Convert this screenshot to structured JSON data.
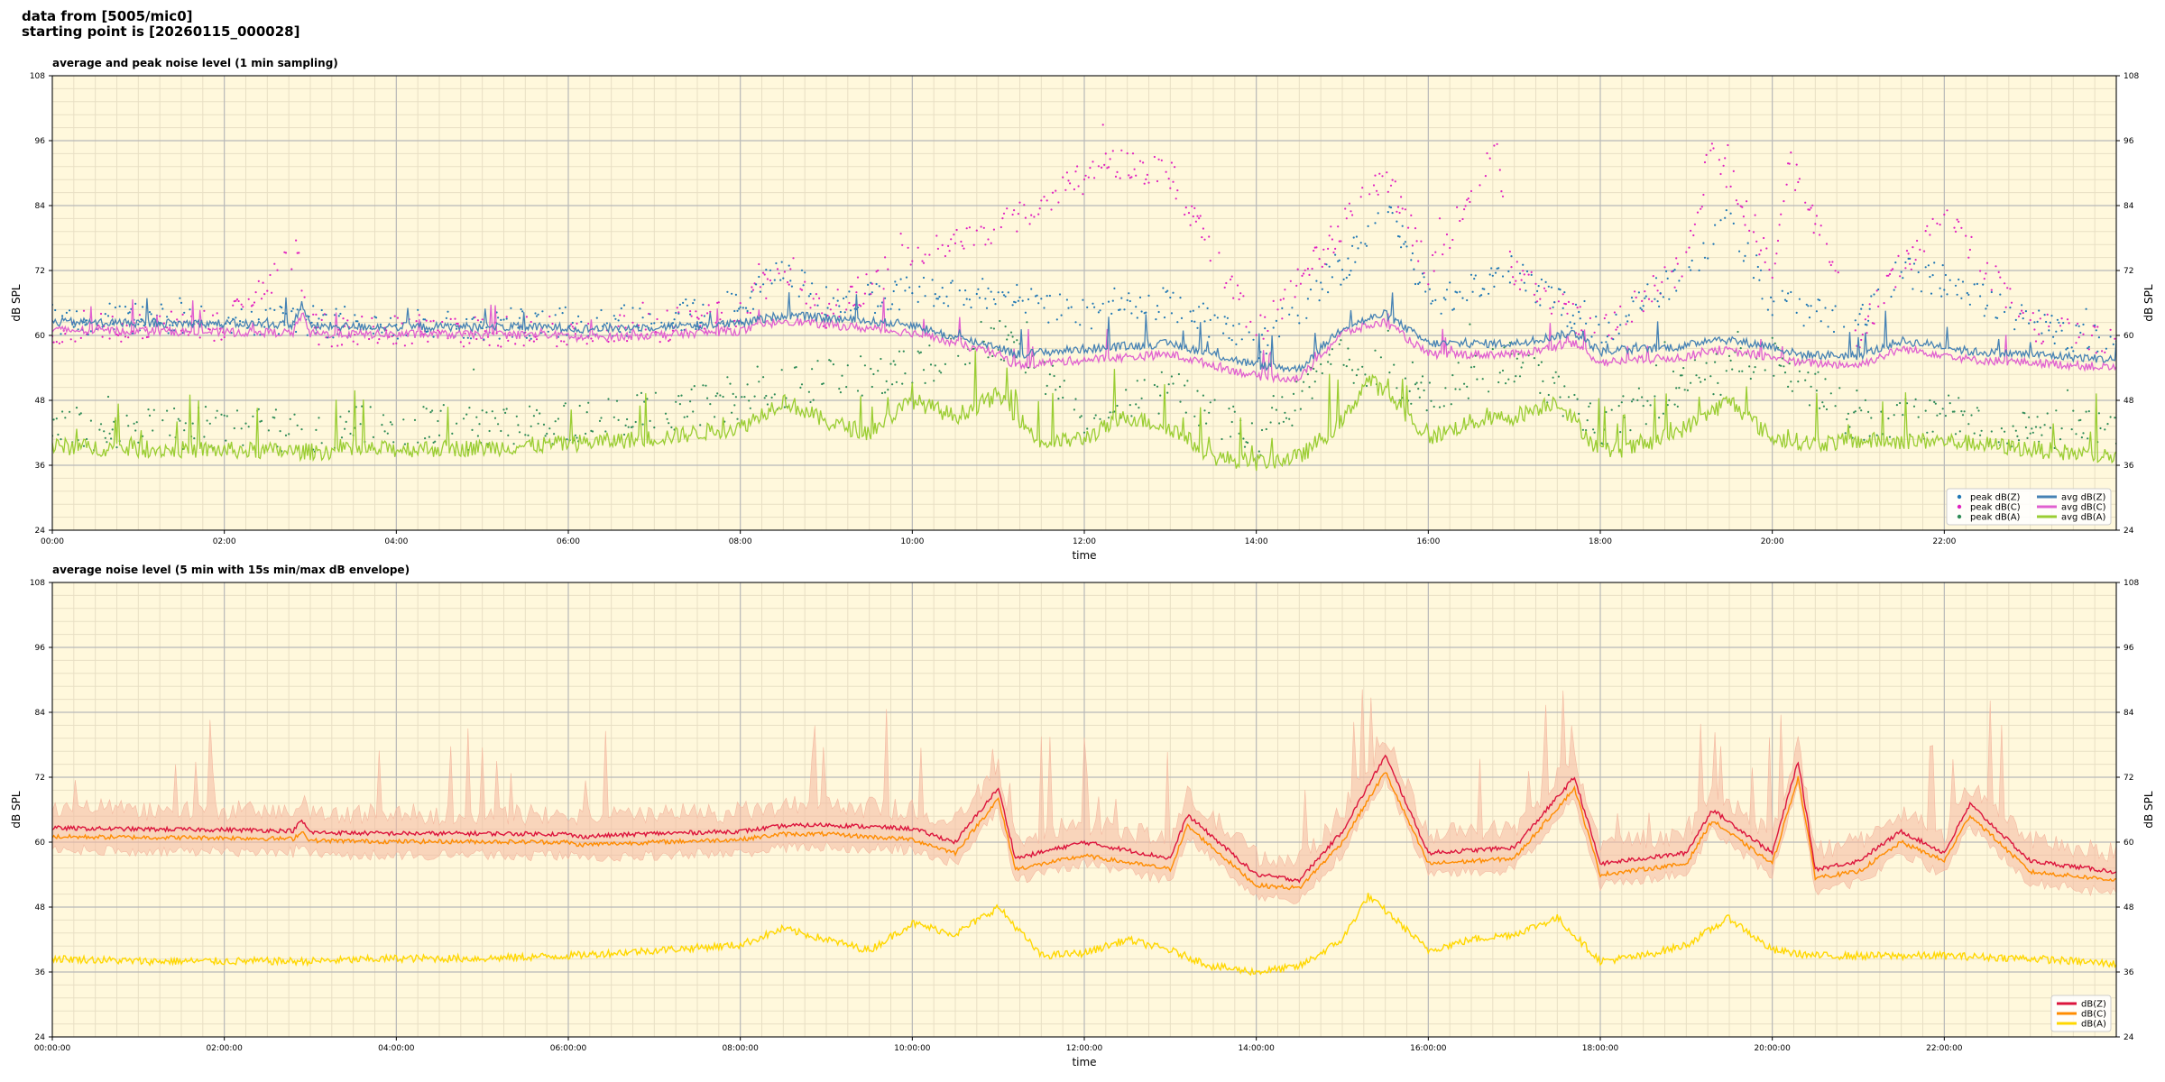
{
  "header": {
    "line1": "data from [5005/mic0]",
    "line2": "starting point is [20260115_000028]"
  },
  "colors": {
    "plot_bg": "#fff8dc",
    "grid_major": "#b8b8b8",
    "grid_minor": "#e8dfc4",
    "zpeak": "#1f77b4",
    "zavg": "#4682b4",
    "cpeak": "#e020c0",
    "cavg": "#e060d0",
    "apeak": "#2e8b57",
    "aavg": "#9acd32",
    "env_dbz": "#dc143c",
    "env_dbc": "#ff8c00",
    "env_dba": "#ffd700",
    "env_fill": "#f4b8a0"
  },
  "chart_data": [
    {
      "type": "line",
      "title": "average and peak noise level (1 min sampling)",
      "xlabel": "time",
      "ylabel": "dB SPL",
      "ylabel_right": "dB SPL",
      "xlim": [
        0,
        24
      ],
      "ylim": [
        24,
        108
      ],
      "y_ticks": [
        "24",
        "36",
        "48",
        "60",
        "72",
        "84",
        "96",
        "108"
      ],
      "x_ticks": [
        "00:00",
        "02:00",
        "04:00",
        "06:00",
        "08:00",
        "10:00",
        "12:00",
        "14:00",
        "16:00",
        "18:00",
        "20:00",
        "22:00"
      ],
      "grid": true,
      "legend_position": "bottom-right",
      "legend": [
        {
          "label": "peak dB(Z)",
          "style": "dot",
          "color_key": "zpeak"
        },
        {
          "label": "peak dB(C)",
          "style": "dot",
          "color_key": "cpeak"
        },
        {
          "label": "peak dB(A)",
          "style": "dot",
          "color_key": "apeak"
        },
        {
          "label": "avg dB(Z)",
          "style": "line",
          "color_key": "zavg"
        },
        {
          "label": "avg dB(C)",
          "style": "line",
          "color_key": "cavg"
        },
        {
          "label": "avg dB(A)",
          "style": "line",
          "color_key": "aavg"
        }
      ],
      "series": [
        {
          "name": "avg dB(Z)",
          "color_key": "zavg",
          "x": [
            0,
            1,
            2,
            2.8,
            2.9,
            3,
            4,
            5,
            6,
            6.1,
            7,
            8,
            8.5,
            9,
            10,
            10.5,
            11,
            11.2,
            12,
            13,
            14,
            14.5,
            15,
            15.5,
            16,
            17,
            17.7,
            18,
            19,
            19.3,
            20,
            20.3,
            21,
            21.5,
            22,
            22.3,
            23,
            24
          ],
          "y": [
            62.5,
            62.3,
            62.2,
            62.0,
            66.0,
            61.7,
            61.6,
            61.6,
            61.5,
            61.2,
            61.6,
            62.2,
            63.8,
            63.2,
            62.0,
            59.5,
            58.0,
            56.5,
            57.5,
            58.5,
            54.5,
            53.8,
            61.5,
            64.0,
            58.5,
            58.5,
            60.5,
            57.0,
            58.0,
            59.5,
            58.0,
            56.5,
            56.2,
            59.0,
            58.0,
            57.0,
            56.5,
            55.5
          ]
        },
        {
          "name": "avg dB(C)",
          "color_key": "cavg",
          "x": [
            0,
            1,
            2,
            2.8,
            2.9,
            3,
            4,
            5,
            6,
            6.1,
            7,
            8,
            8.5,
            9,
            10,
            10.5,
            11,
            11.2,
            12,
            13,
            14,
            14.5,
            15,
            15.5,
            16,
            17,
            17.7,
            18,
            19,
            19.3,
            20,
            20.3,
            21,
            21.5,
            22,
            22.3,
            23,
            24
          ],
          "y": [
            61.0,
            60.8,
            60.6,
            60.5,
            64.0,
            60.3,
            60.2,
            60.2,
            60.0,
            59.5,
            60.1,
            60.8,
            62.8,
            62.0,
            60.5,
            58.5,
            56.5,
            54.5,
            55.5,
            56.5,
            52.5,
            52.0,
            60.5,
            62.5,
            56.5,
            56.5,
            58.5,
            55.0,
            56.0,
            57.5,
            56.0,
            55.0,
            54.5,
            57.5,
            56.5,
            55.5,
            55.0,
            54.0
          ]
        },
        {
          "name": "avg dB(A)",
          "color_key": "aavg",
          "x": [
            0,
            1,
            2,
            3,
            4,
            5,
            6,
            7,
            8,
            8.5,
            9,
            9.5,
            10,
            10.5,
            11,
            11.5,
            12,
            12.5,
            13,
            13.5,
            14,
            14.5,
            15,
            15.3,
            15.6,
            16,
            16.5,
            17,
            17.5,
            18,
            18.5,
            19,
            19.5,
            20,
            20.5,
            21,
            22,
            23,
            24
          ],
          "y": [
            39.5,
            39.0,
            38.8,
            38.5,
            39.0,
            39.2,
            40.0,
            41.0,
            43.0,
            48.0,
            44.0,
            42.0,
            48.0,
            45.0,
            49.0,
            40.0,
            41.0,
            45.0,
            43.0,
            37.5,
            36.5,
            37.5,
            44.0,
            52.0,
            48.0,
            41.0,
            44.0,
            45.0,
            48.0,
            38.5,
            39.5,
            43.0,
            48.0,
            41.0,
            40.0,
            40.5,
            40.5,
            39.0,
            37.5
          ]
        },
        {
          "name": "peak dB(Z)",
          "color_key": "zpeak",
          "x": [
            0,
            1,
            2,
            3,
            4,
            5,
            6,
            7,
            8,
            8.5,
            9,
            10,
            11,
            12,
            13,
            14,
            15,
            15.5,
            16,
            17,
            18,
            19,
            19.5,
            20,
            21,
            21.5,
            22,
            23,
            24
          ],
          "y": [
            63.0,
            63.2,
            63.0,
            62.5,
            62.3,
            62.2,
            62.5,
            63.0,
            65.0,
            72.0,
            66.0,
            68.0,
            67.0,
            64.0,
            66.0,
            58.0,
            72.0,
            85.0,
            66.0,
            72.0,
            60.0,
            72.0,
            82.0,
            66.0,
            62.0,
            72.0,
            70.0,
            62.0,
            58.0
          ]
        },
        {
          "name": "peak dB(C)",
          "color_key": "cpeak",
          "x": [
            0,
            1,
            2,
            2.85,
            3,
            4,
            5,
            6,
            7,
            8,
            8.5,
            9,
            10,
            11,
            12.3,
            13,
            14,
            15,
            15.5,
            16,
            16.8,
            17,
            18,
            19,
            19.3,
            20,
            20.2,
            21,
            21.5,
            22,
            22.3,
            23,
            24
          ],
          "y": [
            61.5,
            61.7,
            61.5,
            75.0,
            61.0,
            60.8,
            60.8,
            61.0,
            61.5,
            64.0,
            73.5,
            64.0,
            75.0,
            80.0,
            92.0,
            90.0,
            60.0,
            80.0,
            90.0,
            72.0,
            93.0,
            72.0,
            60.0,
            73.0,
            95.5,
            73.0,
            92.0,
            60.0,
            73.0,
            81.0,
            76.0,
            62.0,
            58.0
          ]
        },
        {
          "name": "peak dB(A)",
          "color_key": "apeak",
          "x": [
            0,
            1,
            2,
            3,
            4,
            5,
            6,
            7,
            8,
            9,
            10,
            11,
            12,
            13,
            14,
            15,
            16,
            17,
            18,
            19,
            20,
            21,
            22,
            23,
            24
          ],
          "y": [
            43.0,
            42.5,
            43.0,
            42.0,
            44.0,
            42.5,
            44.0,
            46.0,
            48.0,
            52.0,
            54.0,
            60.0,
            46.0,
            50.0,
            41.0,
            56.0,
            49.0,
            55.0,
            43.0,
            51.0,
            56.0,
            44.0,
            45.0,
            43.0,
            42.0
          ]
        }
      ]
    },
    {
      "type": "line",
      "title": "average noise level (5 min with 15s min/max dB envelope)",
      "xlabel": "time",
      "ylabel": "dB SPL",
      "ylabel_right": "dB SPL",
      "xlim": [
        0,
        24
      ],
      "ylim": [
        24,
        108
      ],
      "y_ticks": [
        "24",
        "36",
        "48",
        "60",
        "72",
        "84",
        "96",
        "108"
      ],
      "x_ticks": [
        "00:00:00",
        "02:00:00",
        "04:00:00",
        "06:00:00",
        "08:00:00",
        "10:00:00",
        "12:00:00",
        "14:00:00",
        "16:00:00",
        "18:00:00",
        "20:00:00",
        "22:00:00"
      ],
      "grid": true,
      "legend_position": "bottom-right",
      "legend": [
        {
          "label": "dB(Z)",
          "style": "line",
          "color_key": "env_dbz"
        },
        {
          "label": "dB(C)",
          "style": "line",
          "color_key": "env_dbc"
        },
        {
          "label": "dB(A)",
          "style": "line",
          "color_key": "env_dba"
        }
      ],
      "series": [
        {
          "name": "dB(Z)",
          "color_key": "env_dbz",
          "x": [
            0,
            1,
            2,
            2.8,
            2.9,
            3,
            4,
            5,
            6,
            6.1,
            7,
            8,
            8.5,
            9,
            10,
            10.5,
            11,
            11.2,
            12,
            13,
            13.2,
            14,
            14.5,
            15,
            15.5,
            16,
            17,
            17.7,
            18,
            19,
            19.3,
            20,
            20.3,
            20.5,
            21,
            21.5,
            22,
            22.3,
            23,
            24
          ],
          "y": [
            62.6,
            62.4,
            62.3,
            62.1,
            64.0,
            61.8,
            61.6,
            61.6,
            61.5,
            61.0,
            61.6,
            62.0,
            63.0,
            63.2,
            62.5,
            60.0,
            70.0,
            57.0,
            60.0,
            57.0,
            65.0,
            54.0,
            53.0,
            62.0,
            76.0,
            58.0,
            59.0,
            72.0,
            56.0,
            58.0,
            66.0,
            58.0,
            75.0,
            55.0,
            56.5,
            62.0,
            58.0,
            67.0,
            56.5,
            54.5
          ]
        },
        {
          "name": "dB(C)",
          "color_key": "env_dbc",
          "x": [
            0,
            1,
            2,
            2.8,
            2.9,
            3,
            4,
            5,
            6,
            6.1,
            7,
            8,
            8.5,
            9,
            10,
            10.5,
            11,
            11.2,
            12,
            13,
            13.2,
            14,
            14.5,
            15,
            15.5,
            16,
            17,
            17.7,
            18,
            19,
            19.3,
            20,
            20.3,
            20.5,
            21,
            21.5,
            22,
            22.3,
            23,
            24
          ],
          "y": [
            61.0,
            60.9,
            60.8,
            60.6,
            62.0,
            60.3,
            60.1,
            60.1,
            60.0,
            59.5,
            60.0,
            60.5,
            61.5,
            61.5,
            60.5,
            58.0,
            68.0,
            55.0,
            57.5,
            55.0,
            63.0,
            52.0,
            51.5,
            60.0,
            73.0,
            56.0,
            57.0,
            70.0,
            54.0,
            56.0,
            64.0,
            56.0,
            72.0,
            53.5,
            54.5,
            60.0,
            56.5,
            65.0,
            54.5,
            53.0
          ]
        },
        {
          "name": "dB(A)",
          "color_key": "env_dba",
          "x": [
            0,
            1,
            2,
            3,
            4,
            5,
            6,
            7,
            8,
            8.5,
            9,
            9.5,
            10,
            10.5,
            11,
            11.5,
            12,
            12.5,
            13,
            13.5,
            14,
            14.5,
            15,
            15.3,
            15.6,
            16,
            16.5,
            17,
            17.5,
            18,
            18.5,
            19,
            19.5,
            20,
            20.5,
            21,
            22,
            23,
            24
          ],
          "y": [
            38.5,
            38.0,
            38.0,
            38.0,
            38.5,
            38.5,
            39.0,
            40.0,
            41.0,
            44.0,
            42.0,
            40.0,
            45.0,
            43.0,
            48.0,
            39.0,
            39.5,
            42.0,
            40.0,
            37.0,
            36.0,
            37.0,
            42.0,
            50.0,
            46.0,
            40.0,
            42.0,
            43.0,
            46.0,
            38.0,
            39.0,
            41.0,
            46.0,
            40.0,
            39.0,
            39.0,
            39.0,
            38.5,
            37.5
          ]
        }
      ]
    }
  ]
}
